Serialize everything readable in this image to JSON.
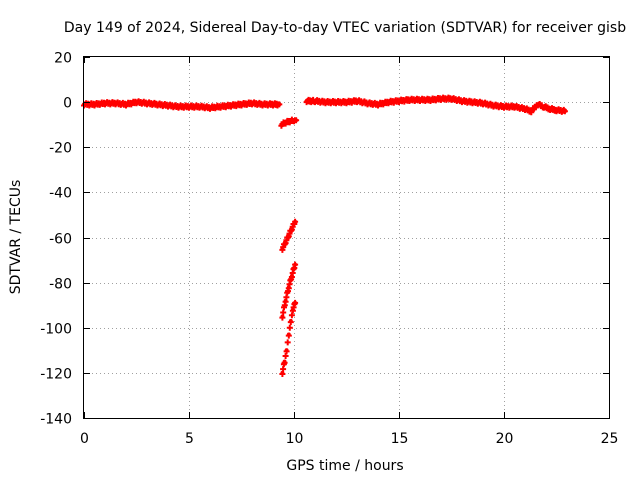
{
  "chart_data": {
    "type": "scatter",
    "title": "Day 149 of 2024, Sidereal Day-to-day VTEC variation (SDTVAR) for receiver gisb",
    "xlabel": "GPS time / hours",
    "ylabel": "SDTVAR / TECUs",
    "xlim": [
      0,
      25
    ],
    "ylim": [
      -140,
      20
    ],
    "xticks": [
      0,
      5,
      10,
      15,
      20,
      25
    ],
    "yticks": [
      -140,
      -120,
      -100,
      -80,
      -60,
      -40,
      -20,
      0,
      20
    ],
    "grid": true,
    "marker_color": "#ff0000",
    "series": [
      {
        "x": [
          0.0,
          0.5,
          1.0,
          1.5,
          2.0,
          2.5,
          3.0,
          3.5,
          4.0,
          4.5,
          5.0,
          5.5,
          6.0,
          6.5,
          7.0,
          7.5,
          8.0,
          8.5,
          9.0,
          9.3
        ],
        "y": [
          -1,
          -1,
          -0.5,
          -0.5,
          -1,
          0,
          -0.5,
          -1,
          -1.5,
          -2,
          -2,
          -2,
          -2.5,
          -2,
          -1.5,
          -1,
          -0.5,
          -1,
          -1,
          -1
        ]
      },
      {
        "x": [
          9.4,
          9.6,
          9.8,
          10.0,
          10.1
        ],
        "y": [
          -10,
          -9,
          -8.5,
          -8,
          -8
        ]
      },
      {
        "x": [
          9.45,
          9.6,
          9.75,
          9.9,
          10.05
        ],
        "y": [
          -65,
          -62,
          -59,
          -56,
          -53
        ]
      },
      {
        "x": [
          9.45,
          9.6,
          9.75,
          9.9,
          10.05
        ],
        "y": [
          -95,
          -88,
          -82,
          -77,
          -72
        ]
      },
      {
        "x": [
          9.45,
          9.55,
          9.65,
          9.75,
          9.85,
          9.95,
          10.05
        ],
        "y": [
          -120,
          -115,
          -110,
          -103,
          -97,
          -92,
          -89
        ]
      },
      {
        "x": [
          10.6,
          11.0,
          11.5,
          12.0,
          12.5,
          13.0,
          13.5,
          14.0,
          14.5,
          15.0,
          15.5,
          16.0,
          16.5,
          17.0,
          17.5,
          18.0,
          18.5,
          19.0,
          19.5,
          20.0,
          20.5,
          21.0,
          21.3,
          21.6,
          21.9,
          22.2,
          22.5,
          22.9
        ],
        "y": [
          0.5,
          0.5,
          0,
          0,
          0,
          0.5,
          -0.5,
          -1,
          0,
          0.5,
          1,
          1,
          1,
          1.5,
          1.5,
          0.5,
          0,
          -0.5,
          -1.5,
          -2,
          -2,
          -3,
          -4,
          -1,
          -2,
          -3,
          -3.5,
          -4
        ]
      }
    ]
  }
}
